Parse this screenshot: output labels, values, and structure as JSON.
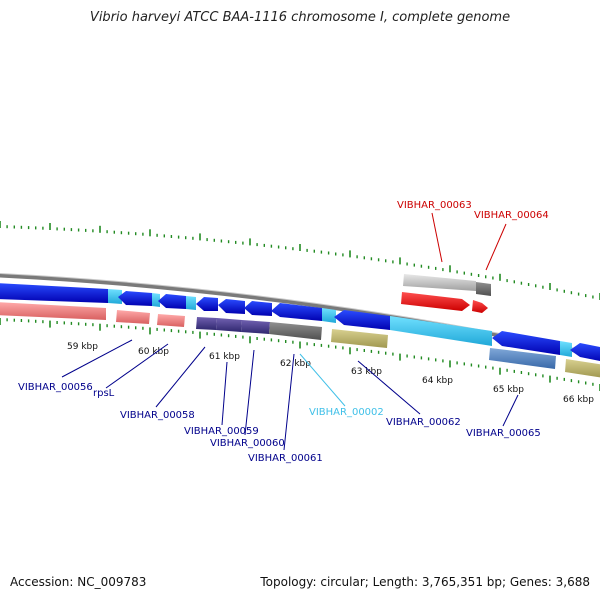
{
  "header": {
    "title": "Vibrio harveyi ATCC BAA-1116 chromosome I, complete genome"
  },
  "footer": {
    "accession": "Accession: NC_009783",
    "summary": "Topology: circular; Length: 3,765,351 bp; Genes: 3,688"
  },
  "ticks": [
    "59 kbp",
    "60 kbp",
    "61 kbp",
    "62 kbp",
    "63 kbp",
    "64 kbp",
    "65 kbp",
    "66 kbp"
  ],
  "gene_labels": [
    {
      "text": "VIBHAR_00063",
      "color": "#cc0000"
    },
    {
      "text": "VIBHAR_00064",
      "color": "#cc0000"
    },
    {
      "text": "VIBHAR_00056",
      "color": "#00008b"
    },
    {
      "text": "rpsL",
      "color": "#00008b"
    },
    {
      "text": "VIBHAR_00058",
      "color": "#00008b"
    },
    {
      "text": "VIBHAR_00059",
      "color": "#00008b"
    },
    {
      "text": "VIBHAR_00060",
      "color": "#00008b"
    },
    {
      "text": "VIBHAR_00061",
      "color": "#00008b"
    },
    {
      "text": "VIBHAR_00002",
      "color": "#40c0e8"
    },
    {
      "text": "VIBHAR_00062",
      "color": "#00008b"
    },
    {
      "text": "VIBHAR_00065",
      "color": "#00008b"
    }
  ],
  "colors": {
    "backbone": "#888888",
    "gc_tick": "#228b22",
    "forward_gene": "#ee0000",
    "reverse_gene": "#0000ee",
    "rna": "#40c8f0",
    "pseudo": "#b8b070",
    "rrna": "#f08080",
    "other": "#505050"
  }
}
